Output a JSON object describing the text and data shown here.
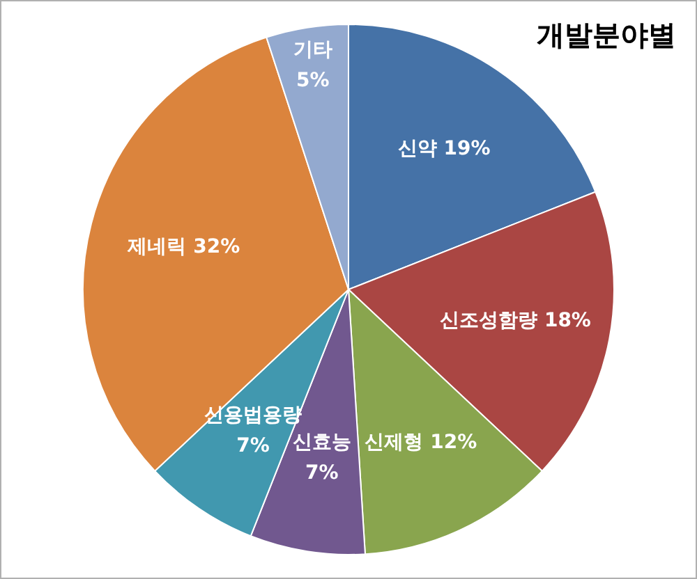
{
  "chart_data": {
    "type": "pie",
    "title": "개발분야별",
    "categories": [
      "신약",
      "신조성함량",
      "신제형",
      "신효능",
      "신용법용량",
      "제네릭",
      "기타"
    ],
    "values": [
      19,
      18,
      12,
      7,
      7,
      32,
      5
    ],
    "value_labels": [
      "19%",
      "18%",
      "12%",
      "7%",
      "7%",
      "32%",
      "5%"
    ],
    "colors": [
      "#4572a7",
      "#aa4643",
      "#89a54e",
      "#71588f",
      "#4198af",
      "#db843d",
      "#93a9cf"
    ],
    "legend": false
  }
}
